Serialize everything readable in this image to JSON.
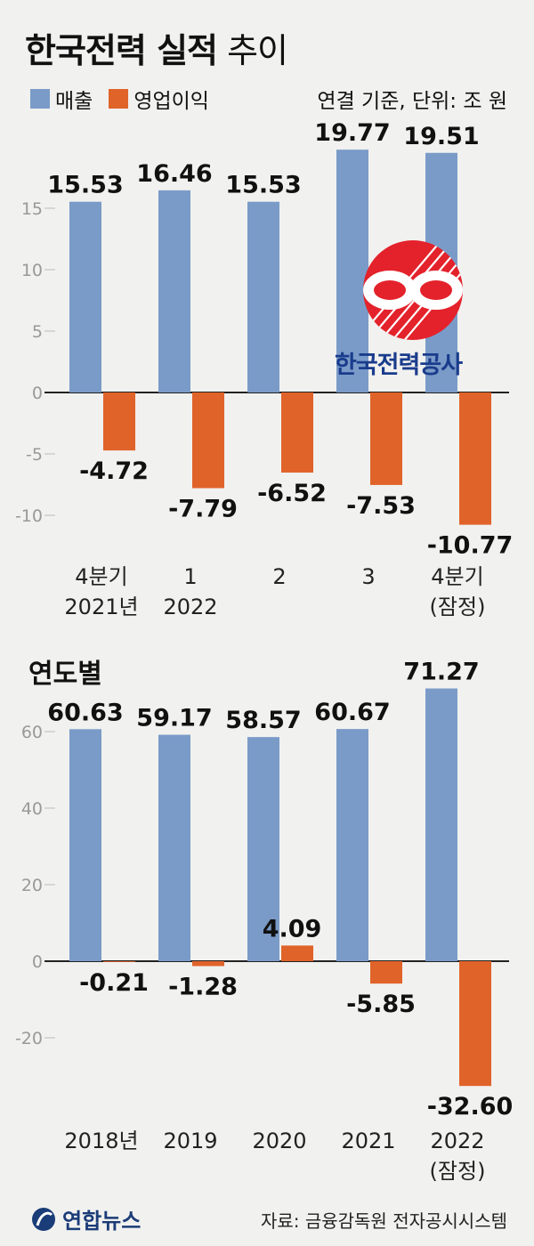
{
  "header": {
    "title_bold": "한국전력 실적",
    "title_light": "추이",
    "legend": [
      {
        "label": "매출",
        "color": "#7a9bc8"
      },
      {
        "label": "영업이익",
        "color": "#e0632a"
      }
    ],
    "unit_note": "연결 기준, 단위: 조 원"
  },
  "logo": {
    "name": "한국전력공사"
  },
  "chart_data": [
    {
      "type": "bar",
      "categories": [
        [
          "4분기",
          "2021년"
        ],
        [
          "1",
          "2022"
        ],
        [
          "2",
          ""
        ],
        [
          "3",
          ""
        ],
        [
          "4분기",
          "(잠정)"
        ]
      ],
      "series": [
        {
          "name": "매출",
          "color": "#7a9bc8",
          "values": [
            15.53,
            16.46,
            15.53,
            19.77,
            19.51
          ]
        },
        {
          "name": "영업이익",
          "color": "#e0632a",
          "values": [
            -4.72,
            -7.79,
            -6.52,
            -7.53,
            -10.77
          ]
        }
      ],
      "value_labels": {
        "매출": [
          "15.53",
          "16.46",
          "15.53",
          "19.77",
          "19.51"
        ],
        "영업이익": [
          "-4.72",
          "-7.79",
          "-6.52",
          "-7.53",
          "-10.77"
        ]
      },
      "yticks": [
        15,
        10,
        5,
        0,
        -5,
        -10
      ],
      "ylim": [
        -12,
        21
      ],
      "grid": false
    },
    {
      "type": "bar",
      "title": "연도별",
      "categories": [
        [
          "2018년",
          ""
        ],
        [
          "2019",
          ""
        ],
        [
          "2020",
          ""
        ],
        [
          "2021",
          ""
        ],
        [
          "2022",
          "(잠정)"
        ]
      ],
      "series": [
        {
          "name": "매출",
          "color": "#7a9bc8",
          "values": [
            60.63,
            59.17,
            58.57,
            60.67,
            71.27
          ]
        },
        {
          "name": "영업이익",
          "color": "#e0632a",
          "values": [
            -0.21,
            -1.28,
            4.09,
            -5.85,
            -32.6
          ]
        }
      ],
      "value_labels": {
        "매출": [
          "60.63",
          "59.17",
          "58.57",
          "60.67",
          "71.27"
        ],
        "영업이익": [
          "-0.21",
          "-1.28",
          "4.09",
          "-5.85",
          "-32.60"
        ]
      },
      "yticks": [
        60,
        40,
        20,
        0,
        -20
      ],
      "ylim": [
        -35,
        75
      ],
      "grid": false
    }
  ],
  "footer": {
    "brand": "연합뉴스",
    "source": "자료: 금융감독원 전자공시시스템"
  }
}
